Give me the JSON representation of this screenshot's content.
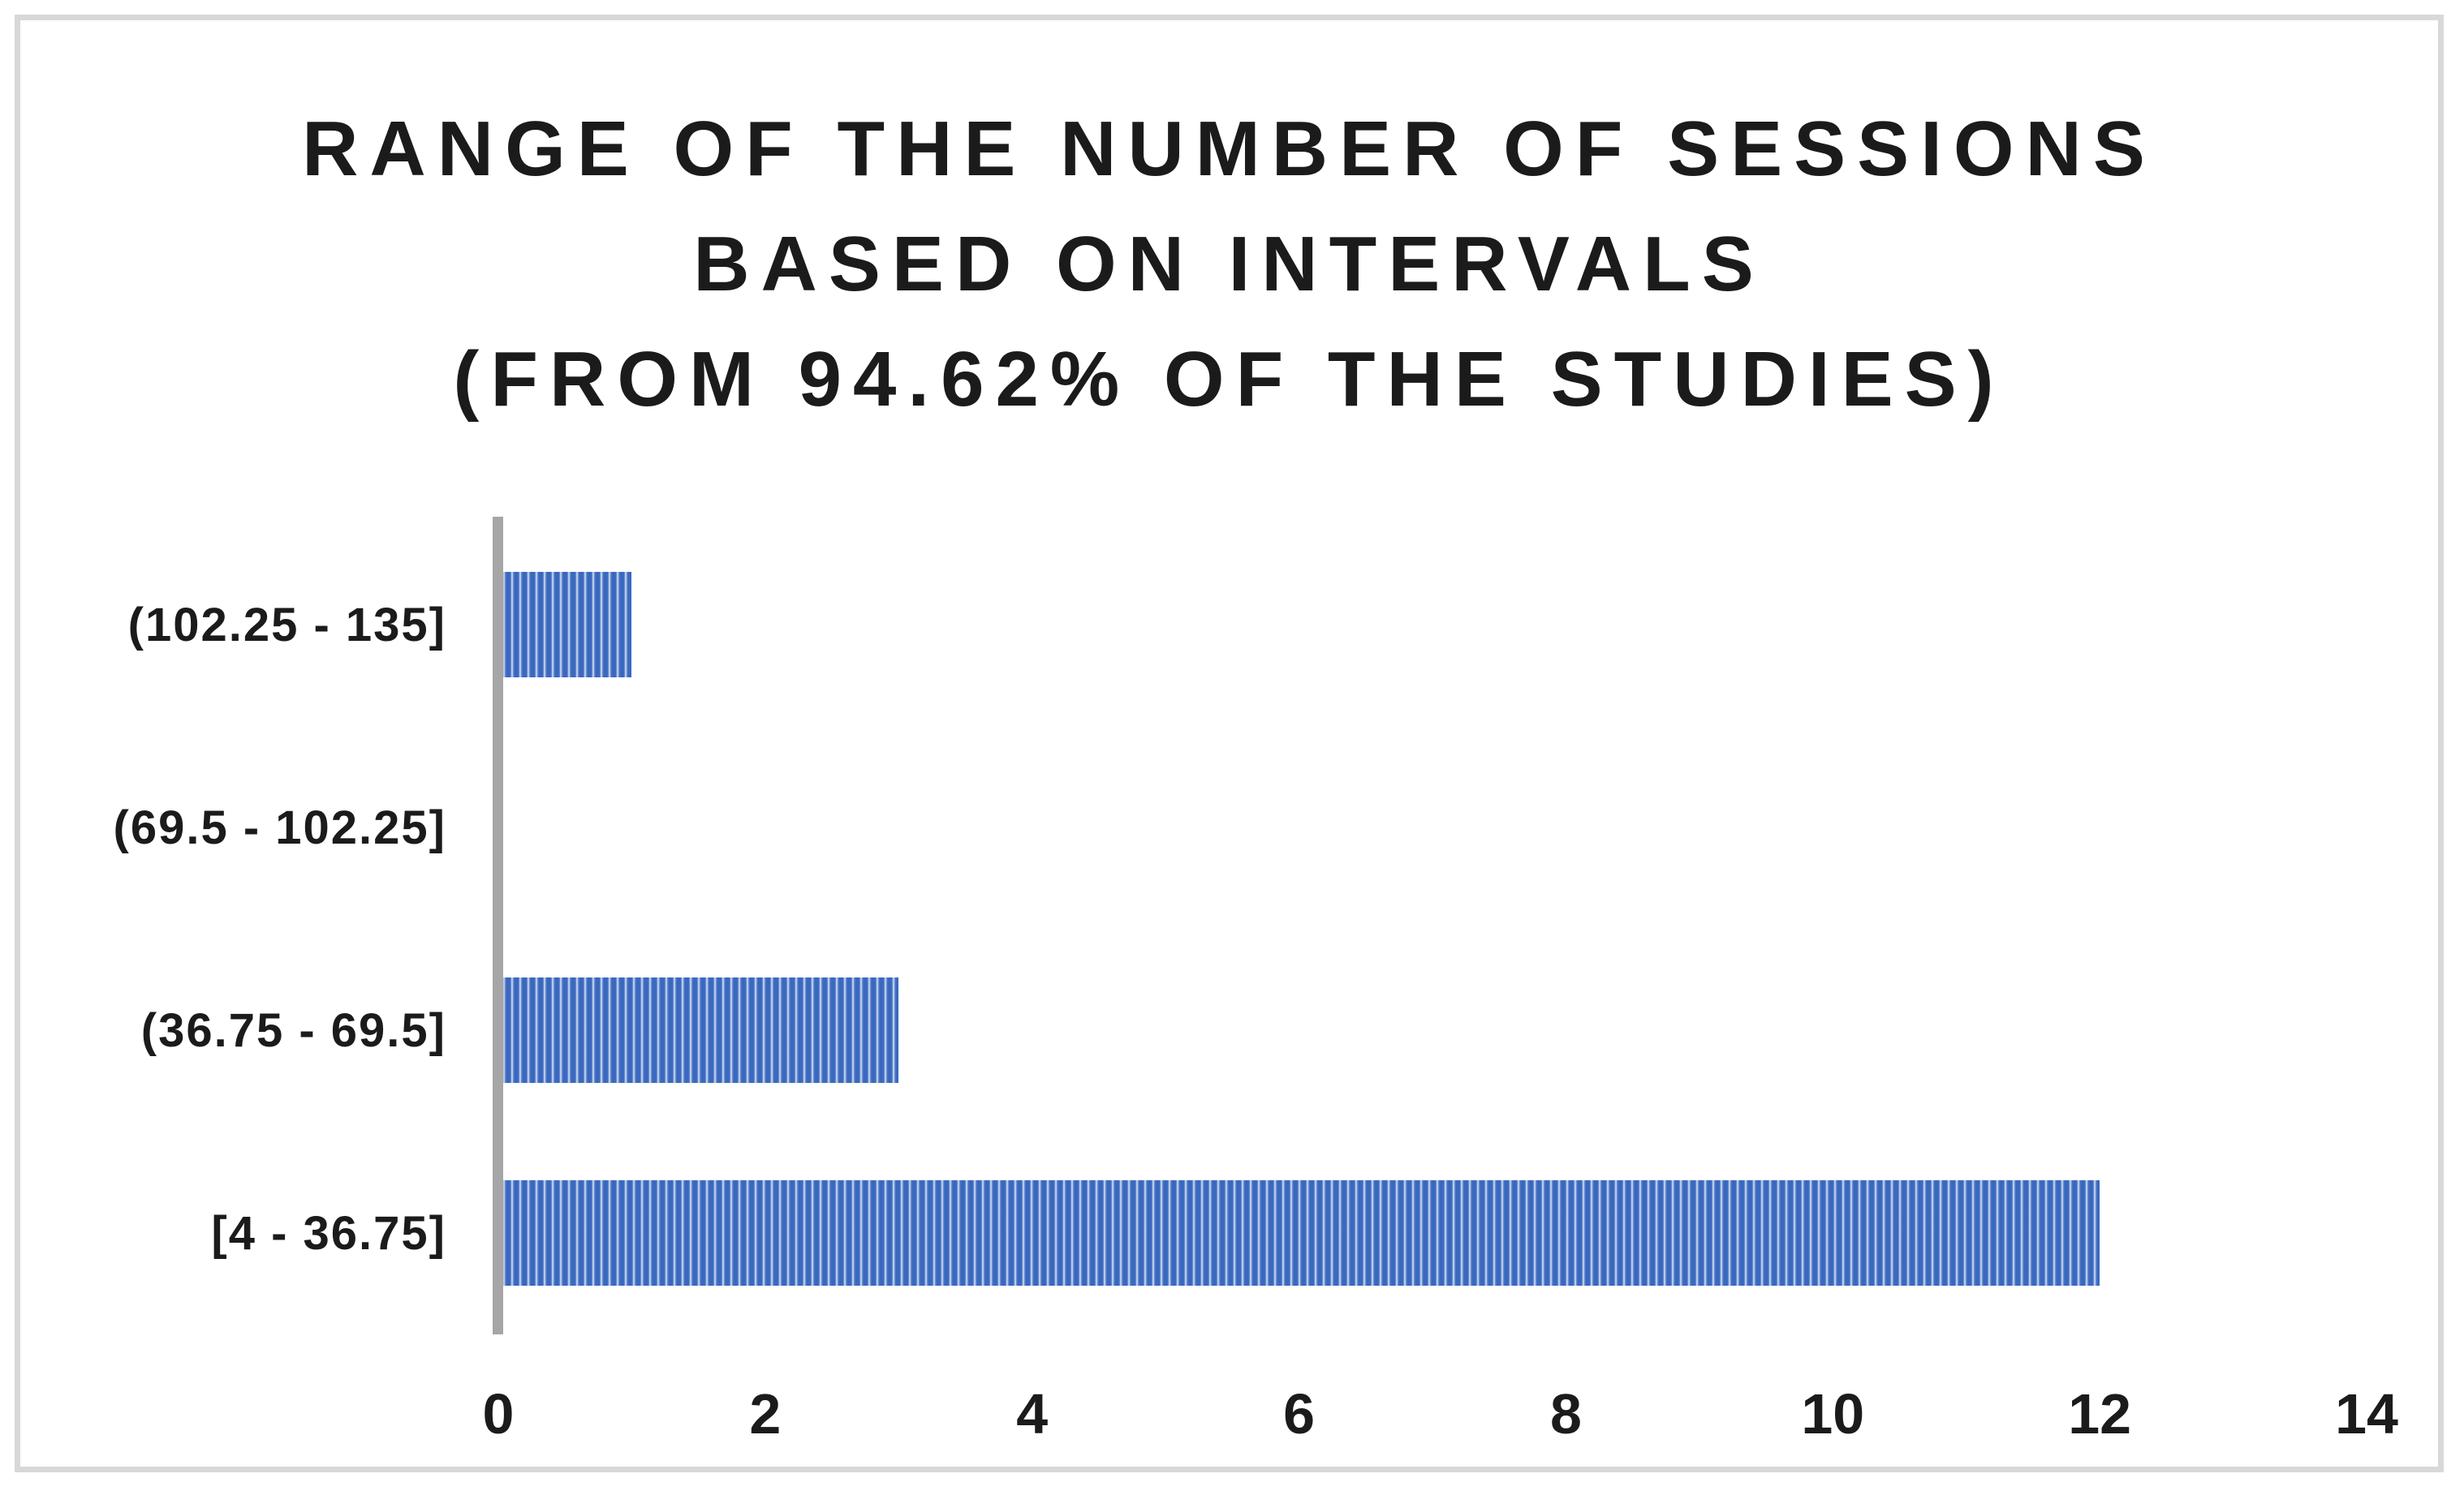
{
  "chart_data": {
    "type": "bar",
    "orientation": "horizontal",
    "title": "RANGE OF THE NUMBER OF SESSIONS BASED ON INTERVALS (FROM 94.62% OF THE STUDIES)",
    "title_lines": [
      "RANGE OF THE NUMBER OF SESSIONS",
      "BASED ON INTERVALS",
      "(FROM 94.62% OF THE STUDIES)"
    ],
    "categories": [
      "(102.25 - 135]",
      "(69.5 - 102.25]",
      "(36.75 - 69.5]",
      "[4 - 36.75]"
    ],
    "values": [
      1,
      0,
      3,
      12
    ],
    "xlabel": "",
    "ylabel": "",
    "xlim": [
      0,
      14
    ],
    "xticks": [
      0,
      2,
      4,
      6,
      8,
      10,
      12,
      14
    ],
    "grid": false,
    "legend": false,
    "bar_fill_pattern": "vertical-stripes",
    "colors": {
      "bar_stripe_dark": "#3a68bf",
      "bar_stripe_light": "#eef2fb",
      "axis_line": "#a6a6a6",
      "frame_border": "#d8d8d8",
      "text": "#1b1b1b",
      "background": "#ffffff"
    }
  }
}
